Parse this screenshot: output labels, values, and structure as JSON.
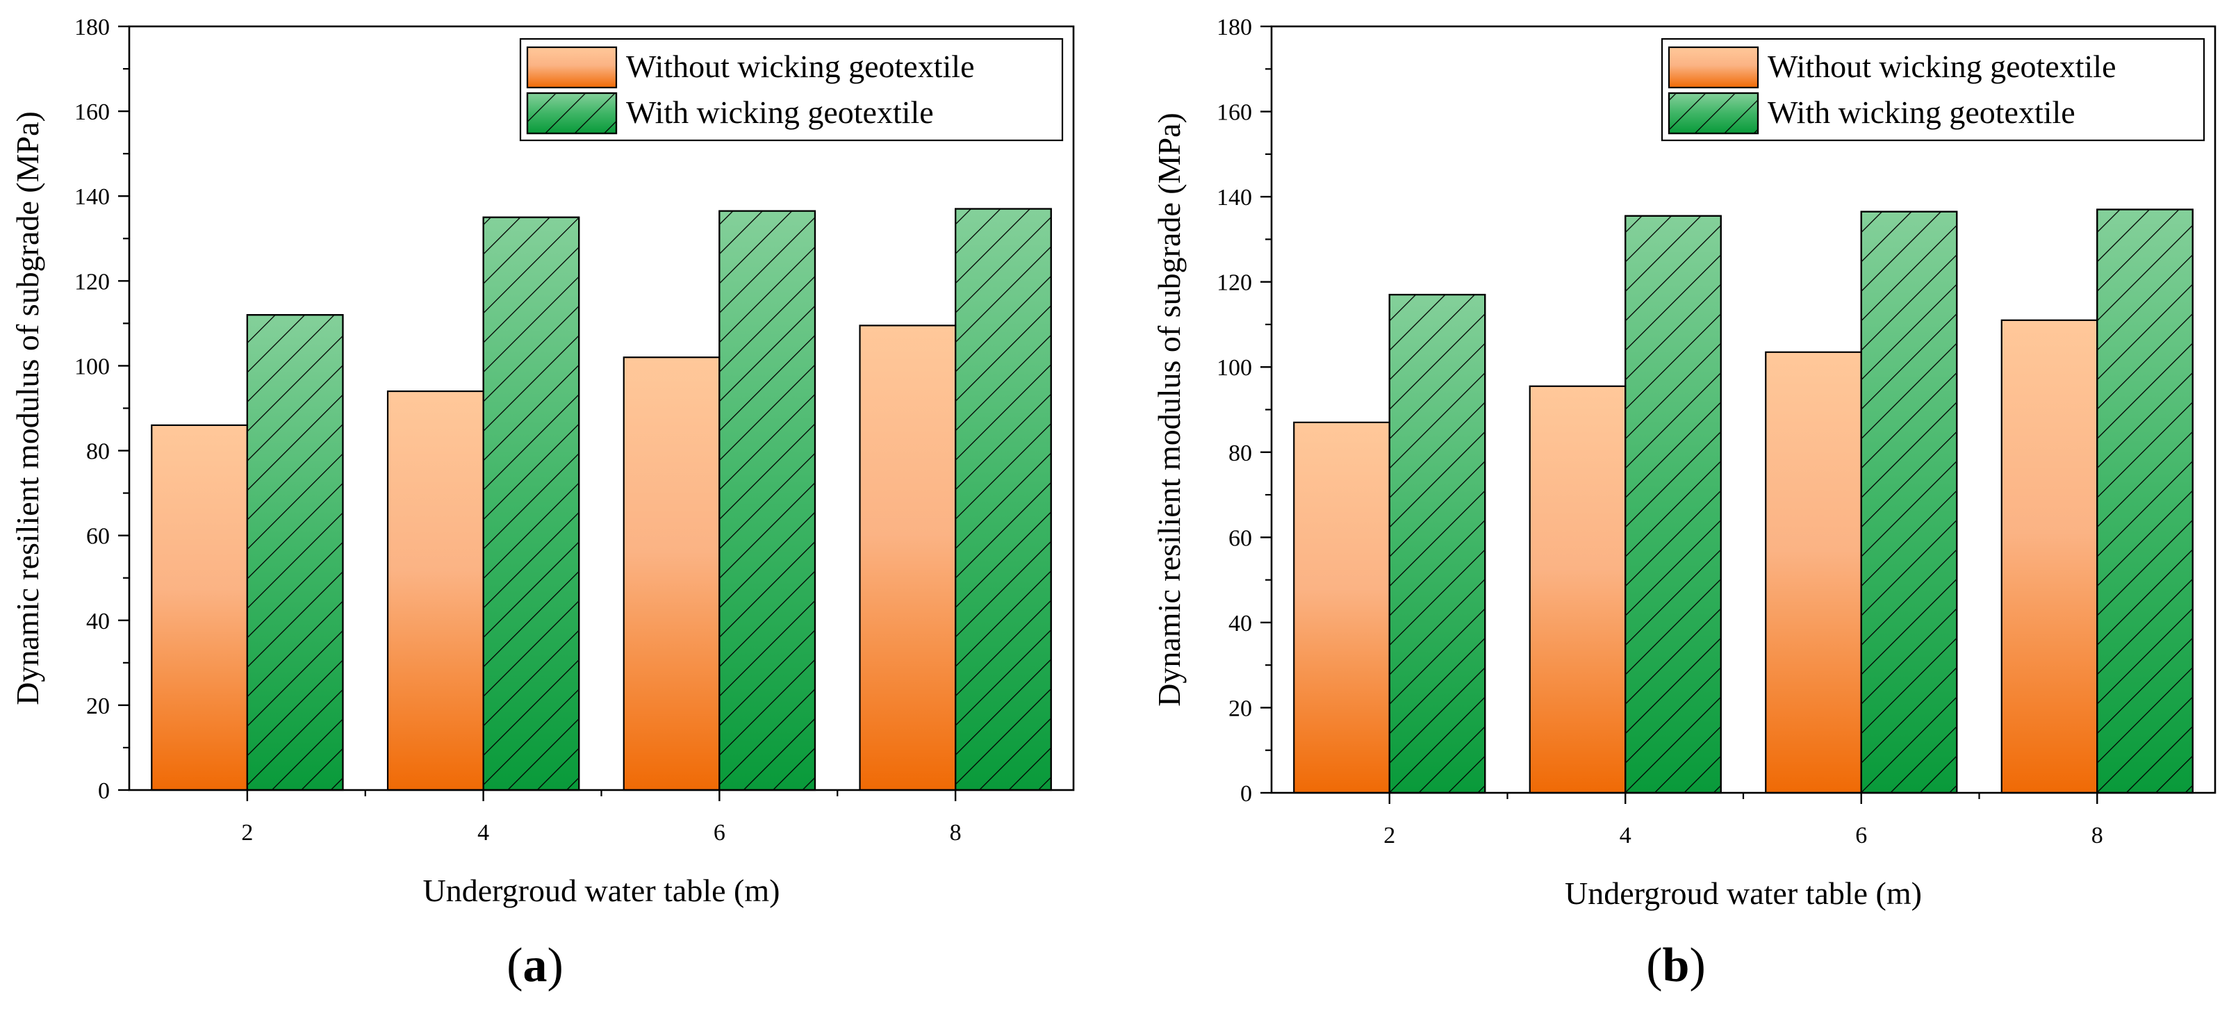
{
  "chart_data": [
    {
      "type": "bar",
      "panel_label": "a",
      "title": "",
      "xlabel": "Undergroud water table (m)",
      "ylabel": "Dynamic resilient modulus of subgrade (MPa)",
      "categories": [
        "2",
        "4",
        "6",
        "8"
      ],
      "ylim": [
        0,
        180
      ],
      "yticks": [
        "0",
        "20",
        "40",
        "60",
        "80",
        "100",
        "120",
        "140",
        "160",
        "180"
      ],
      "legend_position": "top-right",
      "grid": false,
      "series": [
        {
          "name": "Without wicking geotextile",
          "values": [
            86,
            94,
            102,
            109.5
          ],
          "color_top": "#ffc89a",
          "color_bottom": "#f06a05",
          "pattern": "solid"
        },
        {
          "name": "With wicking geotextile",
          "values": [
            112,
            135,
            136.5,
            137
          ],
          "color_top": "#84d09a",
          "color_bottom": "#099a3a",
          "pattern": "diagonal-hatch"
        }
      ]
    },
    {
      "type": "bar",
      "panel_label": "b",
      "title": "",
      "xlabel": "Undergroud water table (m)",
      "ylabel": "Dynamic resilient modulus of subgrade (MPa)",
      "categories": [
        "2",
        "4",
        "6",
        "8"
      ],
      "ylim": [
        0,
        180
      ],
      "yticks": [
        "0",
        "20",
        "40",
        "60",
        "80",
        "100",
        "120",
        "140",
        "160",
        "180"
      ],
      "legend_position": "top-right",
      "grid": false,
      "series": [
        {
          "name": "Without wicking geotextile",
          "values": [
            87,
            95.5,
            103.5,
            111
          ],
          "color_top": "#ffc89a",
          "color_bottom": "#f06a05",
          "pattern": "solid"
        },
        {
          "name": "With wicking geotextile",
          "values": [
            117,
            135.5,
            136.5,
            137
          ],
          "color_top": "#84d09a",
          "color_bottom": "#099a3a",
          "pattern": "diagonal-hatch"
        }
      ]
    }
  ]
}
